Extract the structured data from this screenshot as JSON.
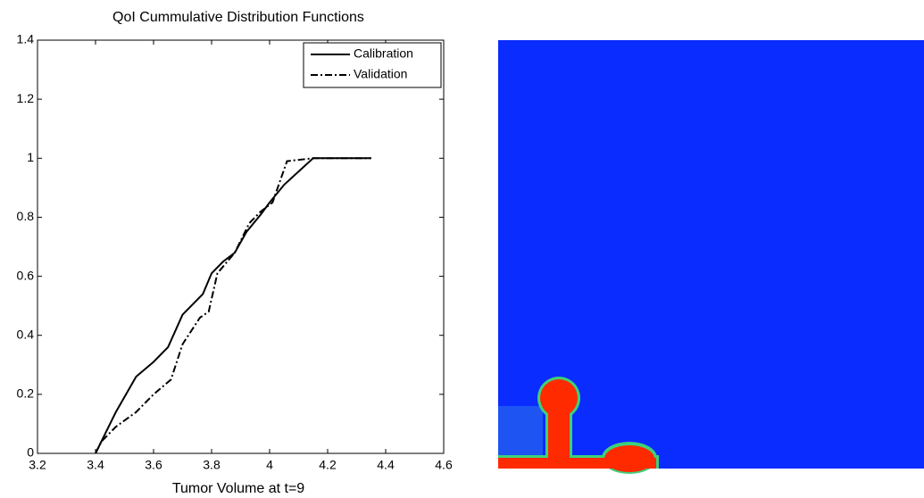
{
  "chart_data": {
    "type": "line",
    "title": "QoI Cummulative Distribution Functions",
    "xlabel": "Tumor Volume at t=9",
    "xlim": [
      3.2,
      4.6
    ],
    "xticks": [
      3.2,
      3.4,
      3.6,
      3.8,
      4,
      4.2,
      4.4,
      4.6
    ],
    "ylim": [
      0,
      1.4
    ],
    "yticks": [
      0,
      0.2,
      0.4,
      0.6,
      0.8,
      1,
      1.2,
      1.4
    ],
    "legend": "upper right",
    "series": [
      {
        "name": "Calibration",
        "color": "#000000",
        "line_style": "solid",
        "x": [
          3.4,
          3.47,
          3.54,
          3.6,
          3.65,
          3.7,
          3.77,
          3.8,
          3.84,
          3.88,
          3.92,
          3.97,
          4.0,
          4.05,
          4.15,
          4.35
        ],
        "values": [
          0,
          0.14,
          0.26,
          0.31,
          0.36,
          0.47,
          0.54,
          0.61,
          0.65,
          0.68,
          0.75,
          0.81,
          0.85,
          0.91,
          1.0,
          1.0
        ]
      },
      {
        "name": "Validation",
        "color": "#000000",
        "line_style": "dashdot",
        "x": [
          3.4,
          3.42,
          3.47,
          3.54,
          3.6,
          3.66,
          3.7,
          3.76,
          3.79,
          3.82,
          3.88,
          3.93,
          3.97,
          4.01,
          4.06,
          4.15,
          4.35
        ],
        "values": [
          0,
          0.04,
          0.09,
          0.14,
          0.2,
          0.25,
          0.37,
          0.46,
          0.48,
          0.61,
          0.68,
          0.78,
          0.82,
          0.85,
          0.99,
          1.0,
          1.0
        ]
      }
    ]
  }
}
